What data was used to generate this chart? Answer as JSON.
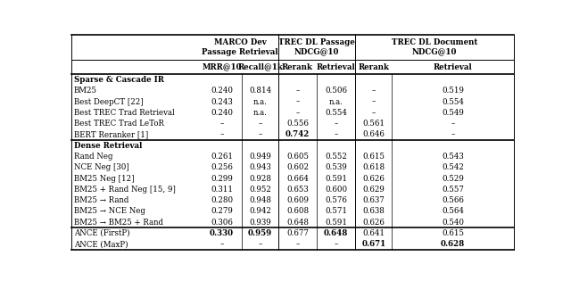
{
  "col_headers_row1": [
    "",
    "MARCO Dev\nPassage Retrieval",
    "",
    "TREC DL Passage\nNDCG@10",
    "",
    "TREC DL Document\nNDCG@10",
    ""
  ],
  "col_headers_row2": [
    "",
    "MRR@10",
    "Recall@1k",
    "Rerank",
    "Retrieval",
    "Rerank",
    "Retrieval"
  ],
  "rows": [
    {
      "label": "Sparse & Cascade IR",
      "vals": [
        "",
        "",
        "",
        "",
        "",
        ""
      ],
      "section": true,
      "bold_label": true,
      "bold_vals": [
        false,
        false,
        false,
        false,
        false,
        false
      ]
    },
    {
      "label": "BM25",
      "vals": [
        "0.240",
        "0.814",
        "–",
        "0.506",
        "–",
        "0.519"
      ],
      "section": false,
      "bold_label": false,
      "bold_vals": [
        false,
        false,
        false,
        false,
        false,
        false
      ]
    },
    {
      "label": "Best DeepCT [22]",
      "vals": [
        "0.243",
        "n.a.",
        "–",
        "n.a.",
        "–",
        "0.554"
      ],
      "section": false,
      "bold_label": false,
      "bold_vals": [
        false,
        false,
        false,
        false,
        false,
        false
      ]
    },
    {
      "label": "Best TREC Trad Retrieval",
      "vals": [
        "0.240",
        "n.a.",
        "–",
        "0.554",
        "–",
        "0.549"
      ],
      "section": false,
      "bold_label": false,
      "bold_vals": [
        false,
        false,
        false,
        false,
        false,
        false
      ]
    },
    {
      "label": "Best TREC Trad LeToR",
      "vals": [
        "–",
        "–",
        "0.556",
        "–",
        "0.561",
        "–"
      ],
      "section": false,
      "bold_label": false,
      "bold_vals": [
        false,
        false,
        false,
        false,
        false,
        false
      ]
    },
    {
      "label": "BERT Reranker [1]",
      "vals": [
        "–",
        "–",
        "0.742",
        "–",
        "0.646",
        "–"
      ],
      "section": false,
      "bold_label": false,
      "bold_vals": [
        false,
        false,
        true,
        false,
        false,
        false
      ]
    },
    {
      "label": "Dense Retrieval",
      "vals": [
        "",
        "",
        "",
        "",
        "",
        ""
      ],
      "section": true,
      "bold_label": true,
      "bold_vals": [
        false,
        false,
        false,
        false,
        false,
        false
      ]
    },
    {
      "label": "Rand Neg",
      "vals": [
        "0.261",
        "0.949",
        "0.605",
        "0.552",
        "0.615",
        "0.543"
      ],
      "section": false,
      "bold_label": false,
      "bold_vals": [
        false,
        false,
        false,
        false,
        false,
        false
      ]
    },
    {
      "label": "NCE Neg [30]",
      "vals": [
        "0.256",
        "0.943",
        "0.602",
        "0.539",
        "0.618",
        "0.542"
      ],
      "section": false,
      "bold_label": false,
      "bold_vals": [
        false,
        false,
        false,
        false,
        false,
        false
      ]
    },
    {
      "label": "BM25 Neg [12]",
      "vals": [
        "0.299",
        "0.928",
        "0.664",
        "0.591",
        "0.626",
        "0.529"
      ],
      "section": false,
      "bold_label": false,
      "bold_vals": [
        false,
        false,
        false,
        false,
        false,
        false
      ]
    },
    {
      "label": "BM25 + Rand Neg [15, 9]",
      "vals": [
        "0.311",
        "0.952",
        "0.653",
        "0.600",
        "0.629",
        "0.557"
      ],
      "section": false,
      "bold_label": false,
      "bold_vals": [
        false,
        false,
        false,
        false,
        false,
        false
      ]
    },
    {
      "label": "BM25 → Rand",
      "vals": [
        "0.280",
        "0.948",
        "0.609",
        "0.576",
        "0.637",
        "0.566"
      ],
      "section": false,
      "bold_label": false,
      "bold_vals": [
        false,
        false,
        false,
        false,
        false,
        false
      ]
    },
    {
      "label": "BM25 → NCE Neg",
      "vals": [
        "0.279",
        "0.942",
        "0.608",
        "0.571",
        "0.638",
        "0.564"
      ],
      "section": false,
      "bold_label": false,
      "bold_vals": [
        false,
        false,
        false,
        false,
        false,
        false
      ]
    },
    {
      "label": "BM25 → BM25 + Rand",
      "vals": [
        "0.306",
        "0.939",
        "0.648",
        "0.591",
        "0.626",
        "0.540"
      ],
      "section": false,
      "bold_label": false,
      "bold_vals": [
        false,
        false,
        false,
        false,
        false,
        false
      ]
    },
    {
      "label": "ANCE (FirstP)",
      "vals": [
        "0.330",
        "0.959",
        "0.677",
        "0.648",
        "0.641",
        "0.615"
      ],
      "section": false,
      "bold_label": false,
      "bold_vals": [
        true,
        true,
        false,
        true,
        false,
        false
      ]
    },
    {
      "label": "ANCE (MaxP)",
      "vals": [
        "–",
        "–",
        "–",
        "–",
        "0.671",
        "0.628"
      ],
      "section": false,
      "bold_label": false,
      "bold_vals": [
        false,
        false,
        false,
        false,
        true,
        true
      ]
    }
  ],
  "thick_divider_after_rows": [
    5,
    13
  ],
  "col_span_groups": [
    {
      "start": 1,
      "end": 2
    },
    {
      "start": 3,
      "end": 4
    },
    {
      "start": 5,
      "end": 6
    }
  ],
  "background_color": "#ffffff",
  "font_family": "DejaVu Serif"
}
